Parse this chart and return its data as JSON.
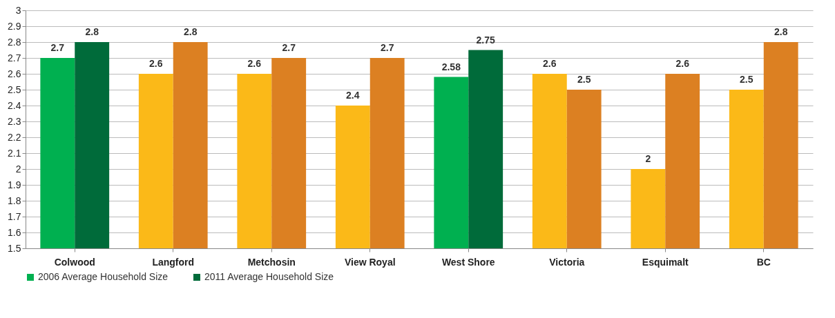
{
  "chart_data": {
    "type": "bar",
    "categories": [
      "Colwood",
      "Langford",
      "Metchosin",
      "View Royal",
      "West Shore",
      "Victoria",
      "Esquimalt",
      "BC"
    ],
    "series": [
      {
        "name": "2006  Average Household Size",
        "color": "#00b050",
        "colors": [
          "#00b050",
          "#fbb918",
          "#fbb918",
          "#fbb918",
          "#00b050",
          "#fbb918",
          "#fbb918",
          "#fbb918"
        ],
        "values": [
          2.7,
          2.6,
          2.6,
          2.4,
          2.58,
          2.6,
          2.0,
          2.5
        ]
      },
      {
        "name": "2011 Average Household Size",
        "color": "#006b3a",
        "colors": [
          "#006b3a",
          "#dc8022",
          "#dc8022",
          "#dc8022",
          "#006b3a",
          "#dc8022",
          "#dc8022",
          "#dc8022"
        ],
        "values": [
          2.8,
          2.8,
          2.7,
          2.7,
          2.75,
          2.5,
          2.6,
          2.8
        ]
      }
    ],
    "ylim": [
      1.5,
      3
    ],
    "yticks": [
      1.5,
      1.6,
      1.7,
      1.8,
      1.9,
      2,
      2.1,
      2.2,
      2.3,
      2.4,
      2.5,
      2.6,
      2.7,
      2.8,
      2.9,
      3
    ],
    "grid": "y",
    "legend": "bottom",
    "data_labels": true
  }
}
